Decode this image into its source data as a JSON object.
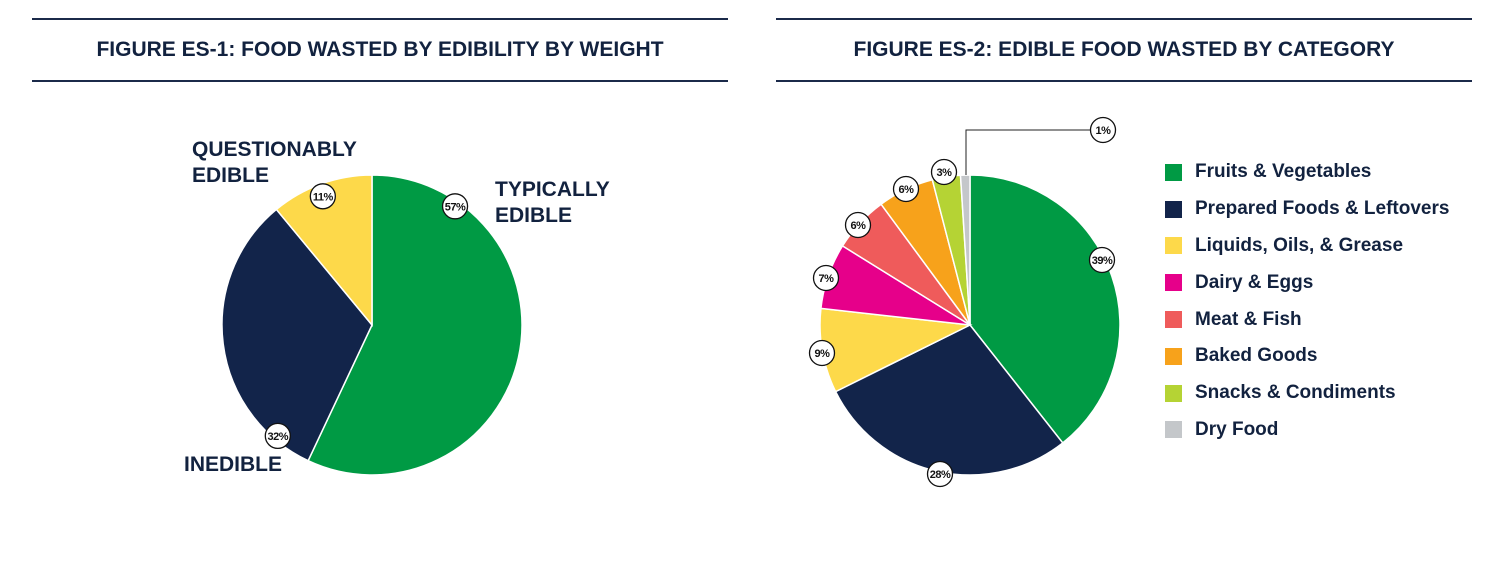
{
  "chart_data": [
    {
      "type": "pie",
      "title": "FIGURE ES-1: FOOD WASTED BY EDIBILITY BY WEIGHT",
      "slices": [
        {
          "name": "TYPICALLY EDIBLE",
          "value": 57,
          "label": "57%",
          "color": "#009a44"
        },
        {
          "name": "INEDIBLE",
          "value": 32,
          "label": "32%",
          "color": "#12244a"
        },
        {
          "name": "QUESTIONABLY EDIBLE",
          "value": 11,
          "label": "11%",
          "color": "#fdd94a"
        }
      ],
      "slice_labels": {
        "typically_edible": [
          "TYPICALLY",
          "EDIBLE"
        ],
        "inedible": [
          "INEDIBLE"
        ],
        "questionably_edible": [
          "QUESTIONABLY",
          "EDIBLE"
        ]
      }
    },
    {
      "type": "pie",
      "title": "FIGURE ES-2: EDIBLE FOOD WASTED BY CATEGORY",
      "legend_position": "right",
      "slices": [
        {
          "name": "Fruits & Vegetables",
          "value": 39,
          "label": "39%",
          "color": "#009a44"
        },
        {
          "name": "Prepared Foods & Leftovers",
          "value": 28,
          "label": "28%",
          "color": "#12244a"
        },
        {
          "name": "Liquids, Oils, & Grease",
          "value": 9,
          "label": "9%",
          "color": "#fdd94a"
        },
        {
          "name": "Dairy & Eggs",
          "value": 7,
          "label": "7%",
          "color": "#e6008a"
        },
        {
          "name": "Meat & Fish",
          "value": 6,
          "label": "6%",
          "color": "#ef5b5b"
        },
        {
          "name": "Baked Goods",
          "value": 6,
          "label": "6%",
          "color": "#f7a21b"
        },
        {
          "name": "Snacks & Condiments",
          "value": 3,
          "label": "3%",
          "color": "#b5d334"
        },
        {
          "name": "Dry Food",
          "value": 1,
          "label": "1%",
          "color": "#c4c7ca"
        }
      ]
    }
  ]
}
